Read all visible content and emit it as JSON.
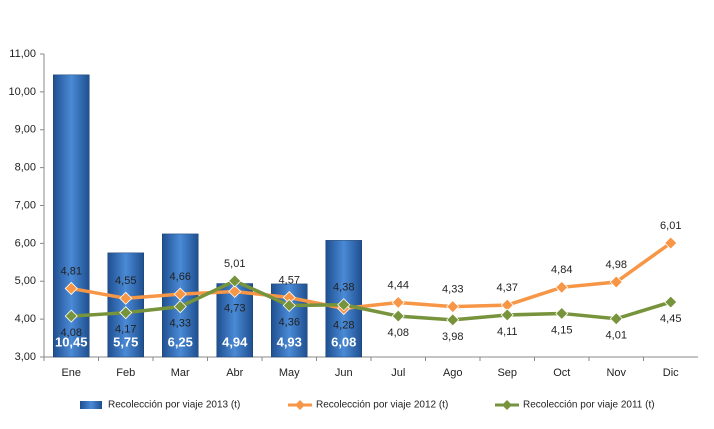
{
  "chart_data": {
    "type": "bar",
    "categories": [
      "Ene",
      "Feb",
      "Mar",
      "Abr",
      "May",
      "Jun",
      "Jul",
      "Ago",
      "Sep",
      "Oct",
      "Nov",
      "Dic"
    ],
    "series": [
      {
        "name": "Recolección por viaje 2013 (t)",
        "type": "bar",
        "color": "#2e6bb8",
        "values": [
          10.45,
          5.75,
          6.25,
          4.94,
          4.93,
          6.08,
          null,
          null,
          null,
          null,
          null,
          null
        ],
        "value_labels": [
          "10,45",
          "5,75",
          "6,25",
          "4,94",
          "4,93",
          "6,08",
          null,
          null,
          null,
          null,
          null,
          null
        ]
      },
      {
        "name": "Recolección por viaje 2012 (t)",
        "type": "line",
        "color": "#f79646",
        "values": [
          4.81,
          4.55,
          4.66,
          4.73,
          4.57,
          4.28,
          4.44,
          4.33,
          4.37,
          4.84,
          4.98,
          6.01
        ],
        "value_labels": [
          "4,81",
          "4,55",
          "4,66",
          "4,73",
          "4,57",
          "4,28",
          "4,44",
          "4,33",
          "4,37",
          "4,84",
          "4,98",
          "6,01"
        ]
      },
      {
        "name": "Recolección por viaje 2011 (t)",
        "type": "line",
        "color": "#77933c",
        "values": [
          4.08,
          4.17,
          4.33,
          5.01,
          4.36,
          4.38,
          4.08,
          3.98,
          4.11,
          4.15,
          4.01,
          4.45
        ],
        "value_labels": [
          "4,08",
          "4,17",
          "4,33",
          "5,01",
          "4,36",
          "4,38",
          "4,08",
          "3,98",
          "4,11",
          "4,15",
          "4,01",
          "4,45"
        ]
      }
    ],
    "ylim": [
      3,
      11
    ],
    "yticks": [
      {
        "value": 3,
        "label": "3,00"
      },
      {
        "value": 4,
        "label": "4,00"
      },
      {
        "value": 5,
        "label": "5,00"
      },
      {
        "value": 6,
        "label": "6,00"
      },
      {
        "value": 7,
        "label": "7,00"
      },
      {
        "value": 8,
        "label": "8,00"
      },
      {
        "value": 9,
        "label": "9,00"
      },
      {
        "value": 10,
        "label": "10,00"
      },
      {
        "value": 11,
        "label": "11,00"
      }
    ],
    "grid": false,
    "legend": "bottom"
  }
}
